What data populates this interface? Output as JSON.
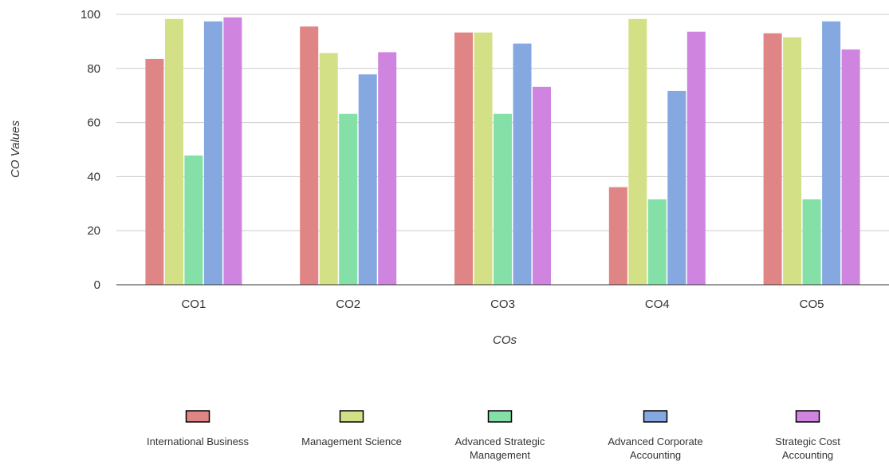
{
  "chart_data": {
    "type": "bar",
    "categories": [
      "CO1",
      "CO2",
      "CO3",
      "CO4",
      "CO5"
    ],
    "series": [
      {
        "name": "International Business",
        "color": "#e08585",
        "values": [
          83.5,
          95.5,
          93.3,
          36.1,
          93.0
        ]
      },
      {
        "name": "Management Science",
        "color": "#d4e086",
        "values": [
          98.3,
          85.7,
          93.3,
          98.3,
          91.5
        ]
      },
      {
        "name": "Advanced Strategic Management",
        "color": "#85e0a8",
        "values": [
          47.8,
          63.2,
          63.2,
          31.6,
          31.6
        ]
      },
      {
        "name": "Advanced Corporate Accounting",
        "color": "#85a8e0",
        "values": [
          97.4,
          77.8,
          89.2,
          71.7,
          97.4
        ]
      },
      {
        "name": "Strategic Cost Accounting",
        "color": "#cf85e0",
        "values": [
          98.9,
          86.0,
          73.2,
          93.6,
          87.0
        ]
      }
    ],
    "yticks": [
      0,
      20,
      40,
      60,
      80,
      100
    ],
    "ylim": [
      0,
      100
    ],
    "xlabel": "COs",
    "ylabel": "CO Values",
    "grid": true,
    "legend_position": "bottom"
  }
}
